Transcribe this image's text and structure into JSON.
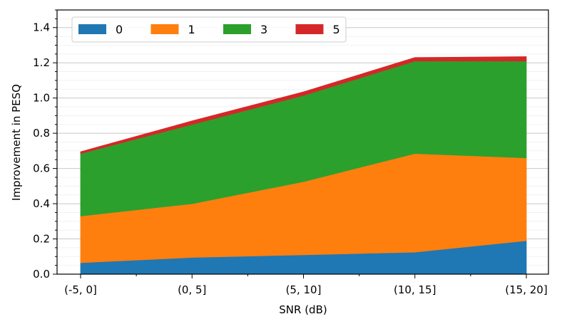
{
  "chart_data": {
    "type": "area",
    "stacked": true,
    "title": "",
    "xlabel": "SNR (dB)",
    "ylabel": "Improvement in PESQ",
    "categories": [
      "(-5, 0]",
      "(0, 5]",
      "(5, 10]",
      "(10, 15]",
      "(15, 20]"
    ],
    "ylim": [
      0,
      1.5
    ],
    "yticks": [
      "0.0",
      "0.2",
      "0.4",
      "0.6",
      "0.8",
      "1.0",
      "1.2",
      "1.4"
    ],
    "grid": "horizontal major and minor",
    "legend_position": "top-left",
    "series": [
      {
        "name": "0",
        "color": "#1f77b4",
        "values": [
          0.065,
          0.095,
          0.11,
          0.125,
          0.19
        ]
      },
      {
        "name": "1",
        "color": "#ff7f0e",
        "values": [
          0.265,
          0.305,
          0.415,
          0.56,
          0.47
        ]
      },
      {
        "name": "3",
        "color": "#2ca02c",
        "values": [
          0.355,
          0.45,
          0.49,
          0.525,
          0.55
        ]
      },
      {
        "name": "5",
        "color": "#d62728",
        "values": [
          0.01,
          0.02,
          0.02,
          0.02,
          0.025
        ]
      }
    ]
  }
}
